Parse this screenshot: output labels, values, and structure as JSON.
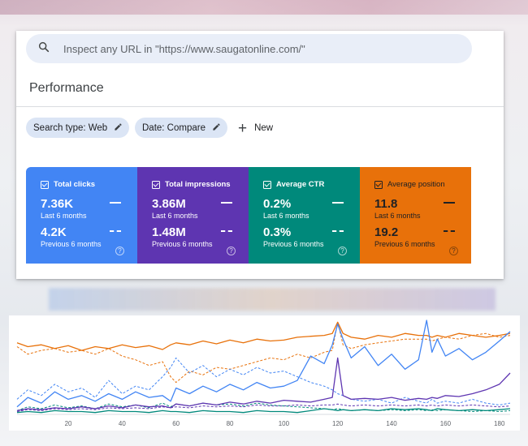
{
  "search": {
    "placeholder": "Inspect any URL in \"https://www.saugatonline.com/\""
  },
  "page": {
    "title": "Performance"
  },
  "filters": {
    "chips": [
      {
        "label": "Search type: Web"
      },
      {
        "label": "Date: Compare"
      }
    ],
    "new_label": "New"
  },
  "metrics": [
    {
      "label": "Total clicks",
      "current": "7.36K",
      "current_period": "Last 6 months",
      "previous": "4.2K",
      "previous_period": "Previous 6 months",
      "color": "#4285f4",
      "checked": true
    },
    {
      "label": "Total impressions",
      "current": "3.86M",
      "current_period": "Last 6 months",
      "previous": "1.48M",
      "previous_period": "Previous 6 months",
      "color": "#5e35b1",
      "checked": true
    },
    {
      "label": "Average CTR",
      "current": "0.2%",
      "current_period": "Last 6 months",
      "previous": "0.3%",
      "previous_period": "Previous 6 months",
      "color": "#00897b",
      "checked": true
    },
    {
      "label": "Average position",
      "current": "11.8",
      "current_period": "Last 6 months",
      "previous": "19.2",
      "previous_period": "Previous 6 months",
      "color": "#e8710a",
      "checked": true
    }
  ],
  "chart_data": {
    "type": "line",
    "x_ticks": [
      20,
      40,
      60,
      80,
      100,
      120,
      140,
      160,
      180
    ],
    "xlim": [
      1,
      184
    ],
    "ylim": [
      0,
      100
    ],
    "grid": false,
    "series_styles": [
      {
        "color": "#4285f4",
        "dash": false
      },
      {
        "color": "#4285f4",
        "dash": true
      },
      {
        "color": "#5e35b1",
        "dash": false
      },
      {
        "color": "#5e35b1",
        "dash": true
      },
      {
        "color": "#00897b",
        "dash": false
      },
      {
        "color": "#00897b",
        "dash": true
      },
      {
        "color": "#e8710a",
        "dash": false
      },
      {
        "color": "#e8710a",
        "dash": true
      }
    ],
    "x": [
      1,
      5,
      10,
      15,
      20,
      25,
      30,
      35,
      40,
      45,
      50,
      55,
      58,
      60,
      65,
      70,
      75,
      80,
      85,
      90,
      95,
      100,
      105,
      110,
      115,
      118,
      120,
      122,
      125,
      130,
      135,
      140,
      145,
      150,
      153,
      155,
      157,
      160,
      165,
      170,
      175,
      180,
      184
    ],
    "series": [
      {
        "values": [
          8,
          18,
          12,
          24,
          16,
          20,
          14,
          22,
          16,
          24,
          18,
          20,
          14,
          28,
          22,
          30,
          24,
          32,
          26,
          34,
          28,
          30,
          36,
          62,
          54,
          74,
          96,
          80,
          60,
          72,
          52,
          64,
          48,
          58,
          100,
          66,
          80,
          62,
          70,
          58,
          66,
          78,
          88
        ]
      },
      {
        "values": [
          16,
          26,
          20,
          32,
          24,
          28,
          18,
          36,
          22,
          30,
          26,
          40,
          50,
          60,
          44,
          52,
          40,
          48,
          42,
          50,
          44,
          46,
          40,
          34,
          30,
          26,
          22,
          20,
          16,
          14,
          16,
          12,
          18,
          14,
          12,
          16,
          12,
          14,
          12,
          16,
          12,
          10,
          12
        ]
      },
      {
        "values": [
          4,
          6,
          5,
          7,
          6,
          8,
          6,
          9,
          7,
          10,
          8,
          9,
          7,
          11,
          9,
          12,
          10,
          13,
          11,
          14,
          12,
          15,
          14,
          13,
          16,
          18,
          60,
          20,
          16,
          17,
          16,
          18,
          15,
          17,
          16,
          18,
          17,
          20,
          19,
          22,
          26,
          32,
          44
        ]
      },
      {
        "values": [
          3,
          5,
          4,
          6,
          5,
          6,
          5,
          7,
          6,
          7,
          6,
          8,
          7,
          8,
          7,
          9,
          8,
          9,
          8,
          10,
          9,
          9,
          10,
          9,
          10,
          10,
          11,
          10,
          9,
          10,
          9,
          10,
          9,
          10,
          9,
          10,
          9,
          10,
          9,
          10,
          9,
          8,
          9
        ]
      },
      {
        "values": [
          2,
          3,
          2,
          4,
          3,
          3,
          2,
          4,
          3,
          3,
          2,
          4,
          3,
          3,
          2,
          4,
          3,
          3,
          2,
          4,
          3,
          3,
          2,
          4,
          6,
          5,
          4,
          5,
          4,
          5,
          4,
          6,
          5,
          6,
          5,
          4,
          6,
          5,
          4,
          5,
          4,
          5,
          6
        ]
      },
      {
        "values": [
          4,
          8,
          6,
          10,
          7,
          9,
          6,
          11,
          8,
          10,
          7,
          12,
          8,
          11,
          9,
          12,
          10,
          11,
          9,
          12,
          10,
          9,
          8,
          7,
          6,
          5,
          6,
          5,
          4,
          5,
          4,
          5,
          4,
          5,
          4,
          5,
          4,
          5,
          4,
          3,
          4,
          3,
          4
        ]
      },
      {
        "values": [
          76,
          72,
          74,
          70,
          73,
          68,
          72,
          70,
          74,
          71,
          73,
          69,
          74,
          76,
          74,
          78,
          75,
          79,
          76,
          80,
          78,
          79,
          82,
          83,
          84,
          86,
          98,
          86,
          82,
          80,
          84,
          82,
          86,
          84,
          84,
          82,
          84,
          82,
          86,
          84,
          82,
          84,
          86
        ]
      },
      {
        "values": [
          72,
          64,
          68,
          70,
          66,
          68,
          64,
          70,
          62,
          58,
          52,
          56,
          40,
          34,
          46,
          42,
          50,
          48,
          52,
          56,
          60,
          58,
          64,
          60,
          66,
          68,
          98,
          74,
          70,
          74,
          76,
          78,
          80,
          80,
          80,
          78,
          80,
          82,
          80,
          84,
          86,
          82,
          84
        ]
      }
    ]
  }
}
